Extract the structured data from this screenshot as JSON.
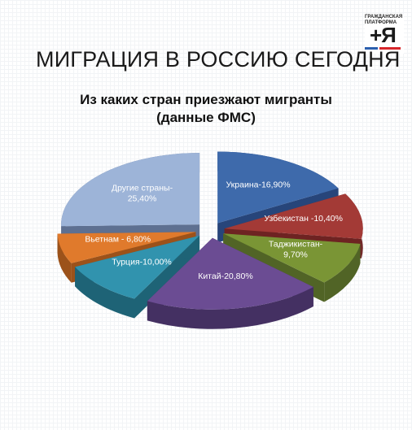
{
  "slide": {
    "title": "МИГРАЦИЯ В РОССИЮ СЕГОДНЯ"
  },
  "logo": {
    "top_text": "гражданская платформа",
    "mark": "+Я"
  },
  "chart_data": {
    "type": "pie",
    "title": "Из каких стран приезжают мигранты",
    "subtitle": "(данные ФМС)",
    "unit": "%",
    "slices": [
      {
        "label": "Украина-16,90%",
        "value": 16.9,
        "color": "#3e6aab",
        "dark": "#27457a"
      },
      {
        "label": "Узбекистан -10,40%",
        "value": 10.4,
        "color": "#a33a36",
        "dark": "#6e2322"
      },
      {
        "label": "Таджикистан-\n9,70%",
        "value": 9.7,
        "color": "#7a9535",
        "dark": "#516426"
      },
      {
        "label": "Китай-20,80%",
        "value": 20.8,
        "color": "#6b4c93",
        "dark": "#443062"
      },
      {
        "label": "Турция-10,00%",
        "value": 10.0,
        "color": "#3193ae",
        "dark": "#1e6376"
      },
      {
        "label": "Вьетнам - 6,80%",
        "value": 6.8,
        "color": "#e07a2c",
        "dark": "#9c521a"
      },
      {
        "label": "Другие страны-\n25,40%",
        "value": 25.4,
        "color": "#9db4d8",
        "dark": "#5e7091"
      }
    ]
  }
}
